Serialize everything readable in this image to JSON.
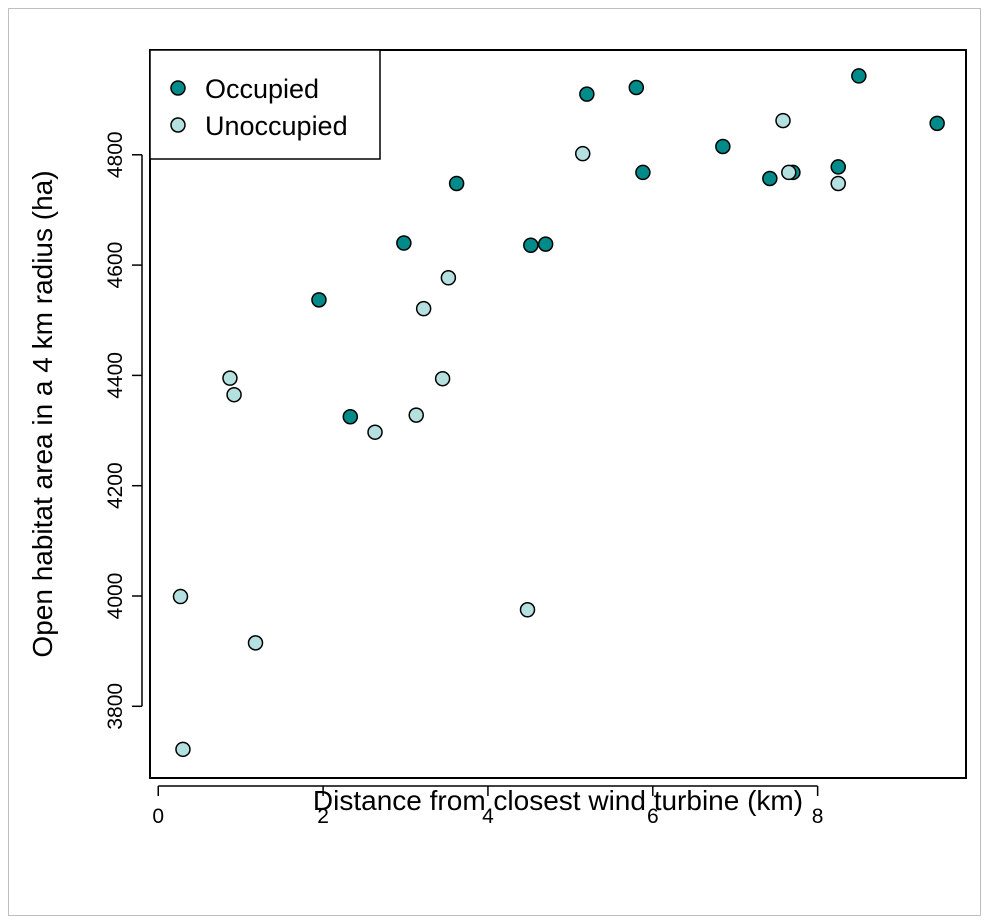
{
  "chart_data": {
    "type": "scatter",
    "title": "",
    "xlabel": "Distance from closest wind turbine (km)",
    "ylabel": "Open habitat area in a 4 km radius (ha)",
    "xlim": [
      -0.1,
      9.8
    ],
    "ylim": [
      3670,
      4990
    ],
    "xticks": [
      0,
      2,
      4,
      6,
      8
    ],
    "yticks": [
      3800,
      4000,
      4200,
      4400,
      4600,
      4800
    ],
    "grid": false,
    "legend_position": "top-left",
    "series": [
      {
        "name": "Occupied",
        "color": "#008b8b",
        "points": [
          [
            1.95,
            4537
          ],
          [
            2.33,
            4325
          ],
          [
            2.98,
            4640
          ],
          [
            3.62,
            4748
          ],
          [
            4.52,
            4636
          ],
          [
            4.7,
            4638
          ],
          [
            5.2,
            4910
          ],
          [
            5.8,
            4922
          ],
          [
            5.88,
            4768
          ],
          [
            6.85,
            4815
          ],
          [
            7.42,
            4757
          ],
          [
            7.7,
            4768
          ],
          [
            8.25,
            4778
          ],
          [
            8.5,
            4943
          ],
          [
            9.45,
            4857
          ]
        ]
      },
      {
        "name": "Unoccupied",
        "color": "#b4e0e0",
        "points": [
          [
            0.27,
            3999
          ],
          [
            0.3,
            3722
          ],
          [
            0.87,
            4395
          ],
          [
            0.92,
            4365
          ],
          [
            1.18,
            3915
          ],
          [
            2.63,
            4297
          ],
          [
            3.13,
            4328
          ],
          [
            3.22,
            4521
          ],
          [
            3.45,
            4394
          ],
          [
            3.52,
            4577
          ],
          [
            4.48,
            3975
          ],
          [
            5.15,
            4802
          ],
          [
            7.58,
            4862
          ],
          [
            7.65,
            4768
          ],
          [
            8.25,
            4748
          ]
        ]
      }
    ]
  }
}
